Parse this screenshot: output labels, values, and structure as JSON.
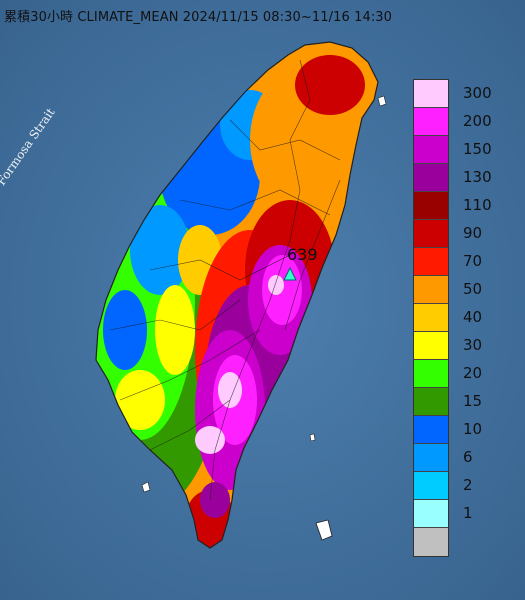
{
  "title": "累積30小時 CLIMATE_MEAN 2024/11/15 08:30~11/16 14:30",
  "strait_label": "Formosa Strait",
  "max_value": "639",
  "legend": {
    "bins": [
      {
        "label": "300",
        "color": "#ffcbff"
      },
      {
        "label": "200",
        "color": "#ff20ff"
      },
      {
        "label": "150",
        "color": "#cc00cc"
      },
      {
        "label": "130",
        "color": "#99009c"
      },
      {
        "label": "110",
        "color": "#990000"
      },
      {
        "label": "90",
        "color": "#cc0000"
      },
      {
        "label": "70",
        "color": "#ff1a00"
      },
      {
        "label": "50",
        "color": "#ff9900"
      },
      {
        "label": "40",
        "color": "#ffcc00"
      },
      {
        "label": "30",
        "color": "#ffff00"
      },
      {
        "label": "20",
        "color": "#33ff00"
      },
      {
        "label": "15",
        "color": "#339900"
      },
      {
        "label": "10",
        "color": "#0066ff"
      },
      {
        "label": "6",
        "color": "#0099ff"
      },
      {
        "label": "2",
        "color": "#00ccff"
      },
      {
        "label": "1",
        "color": "#99ffff"
      },
      {
        "label": "",
        "color": "#c0c0c0"
      }
    ]
  }
}
